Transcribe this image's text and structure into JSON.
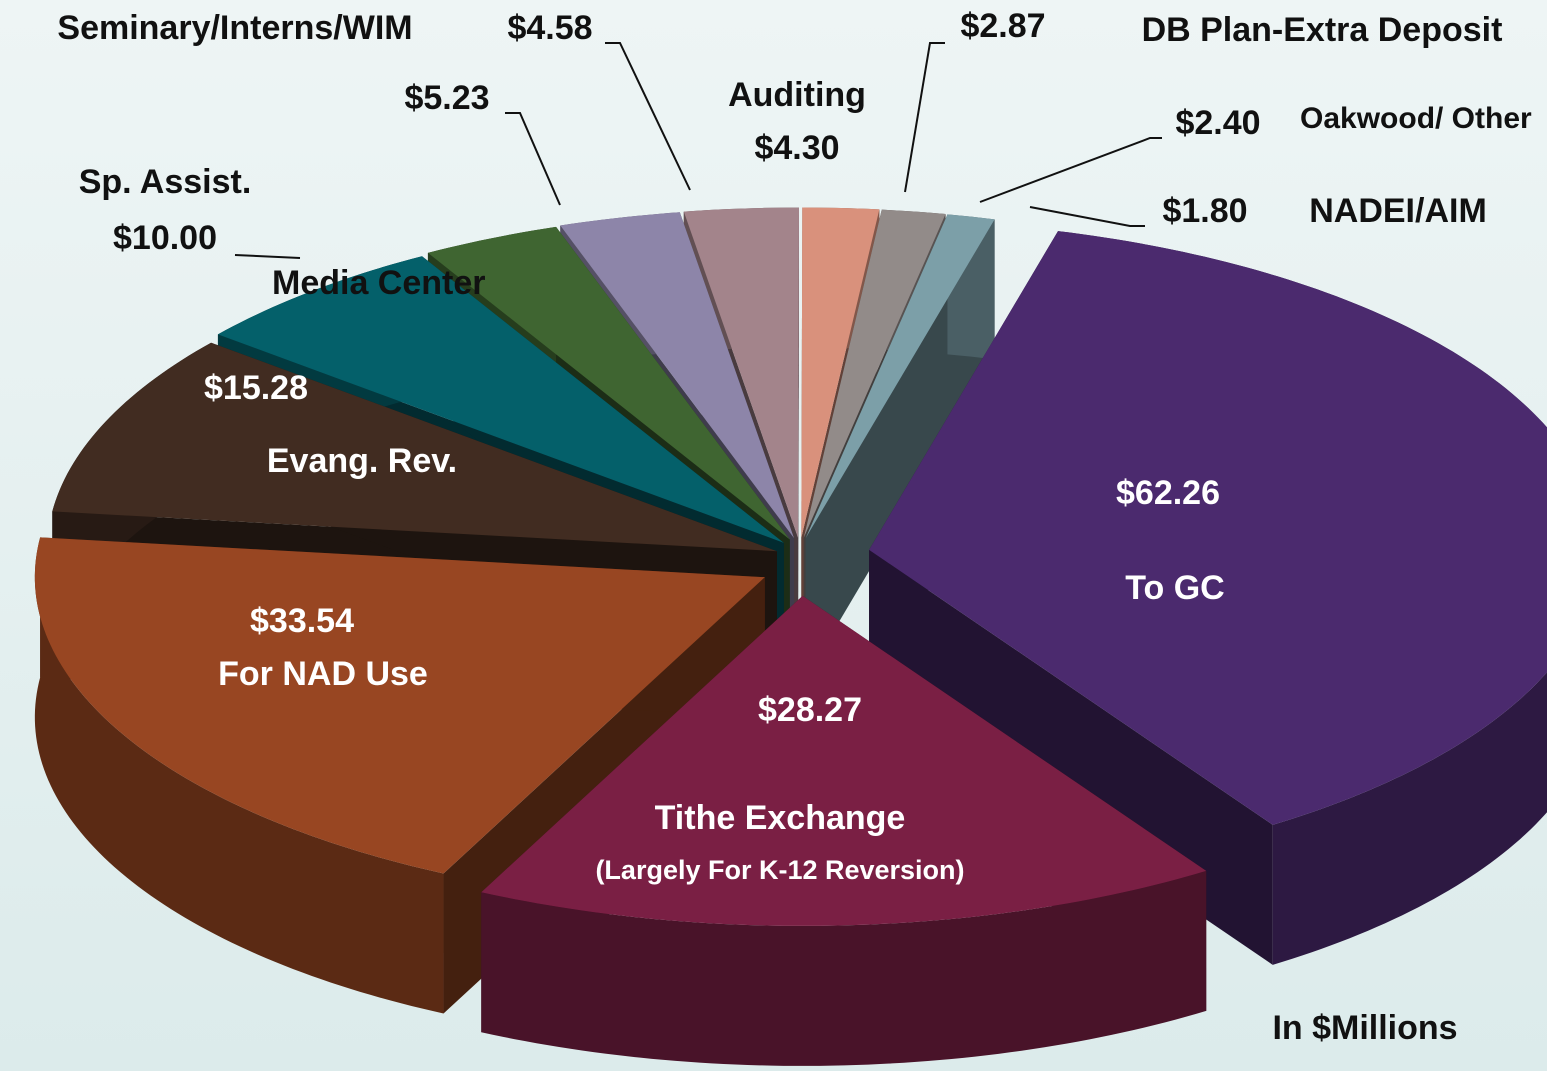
{
  "chart_data": {
    "type": "pie",
    "categories": [
      "To GC",
      "Tithe Exchange",
      "For NAD Use",
      "Evang. Rev.",
      "Sp. Assist.",
      null,
      "Seminary/Interns/WIM",
      "Auditing",
      "DB Plan-Extra Deposit",
      "Oakwood/ Other",
      "NADEI/AIM"
    ],
    "values": [
      62.26,
      28.27,
      33.54,
      15.28,
      10.0,
      5.23,
      4.58,
      4.3,
      2.87,
      2.4,
      1.8
    ],
    "value_labels": [
      "$62.26",
      "$28.27",
      "$33.54",
      "$15.28",
      "$10.00",
      "$5.23",
      "$4.58",
      "$4.30",
      "$2.87",
      "$2.40",
      "$1.80"
    ],
    "colors": [
      "#4b2a6e",
      "#7a1f44",
      "#984622",
      "#412c21",
      "#04606a",
      "#3f6531",
      "#8d85a9",
      "#a3848b",
      "#d9917c",
      "#928b89",
      "#7c9fa8"
    ],
    "annotations": [
      "Media Center",
      "(Largely For K-12 Reversion)",
      "In $Millions"
    ]
  }
}
